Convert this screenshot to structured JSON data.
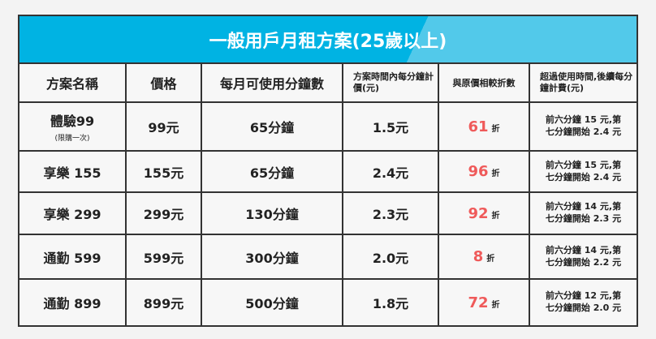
{
  "title": "一般用戶月租方案(25歲以上)",
  "headers": [
    "方案名稱",
    "價格",
    "每月可使用分鐘數",
    "方案時間內每分鐘計價(元)",
    "與原價相較折數",
    "超過使用時間,後續每分鐘計費(元)"
  ],
  "discount_unit": "折",
  "rows": [
    {
      "name": "體驗99",
      "note": "(限購一次)",
      "price": "99元",
      "minutes": "65分鐘",
      "rate": "1.5元",
      "discount": "61",
      "extra1": "前六分鐘 15 元,第",
      "extra2": "七分鐘開始 2.4 元"
    },
    {
      "name": "享樂 155",
      "price": "155元",
      "minutes": "65分鐘",
      "rate": "2.4元",
      "discount": "96",
      "extra1": "前六分鐘 15 元,第",
      "extra2": "七分鐘開始 2.4 元"
    },
    {
      "name": "享樂 299",
      "price": "299元",
      "minutes": "130分鐘",
      "rate": "2.3元",
      "discount": "92",
      "extra1": "前六分鐘 14 元,第",
      "extra2": "七分鐘開始 2.3 元"
    },
    {
      "name": "通勤 599",
      "price": "599元",
      "minutes": "300分鐘",
      "rate": "2.0元",
      "discount": "8",
      "extra1": "前六分鐘 14 元,第",
      "extra2": "七分鐘開始 2.2 元"
    },
    {
      "name": "通勤 899",
      "price": "899元",
      "minutes": "500分鐘",
      "rate": "1.8元",
      "discount": "72",
      "extra1": "前六分鐘 12 元,第",
      "extra2": "七分鐘開始 2.0 元"
    }
  ]
}
